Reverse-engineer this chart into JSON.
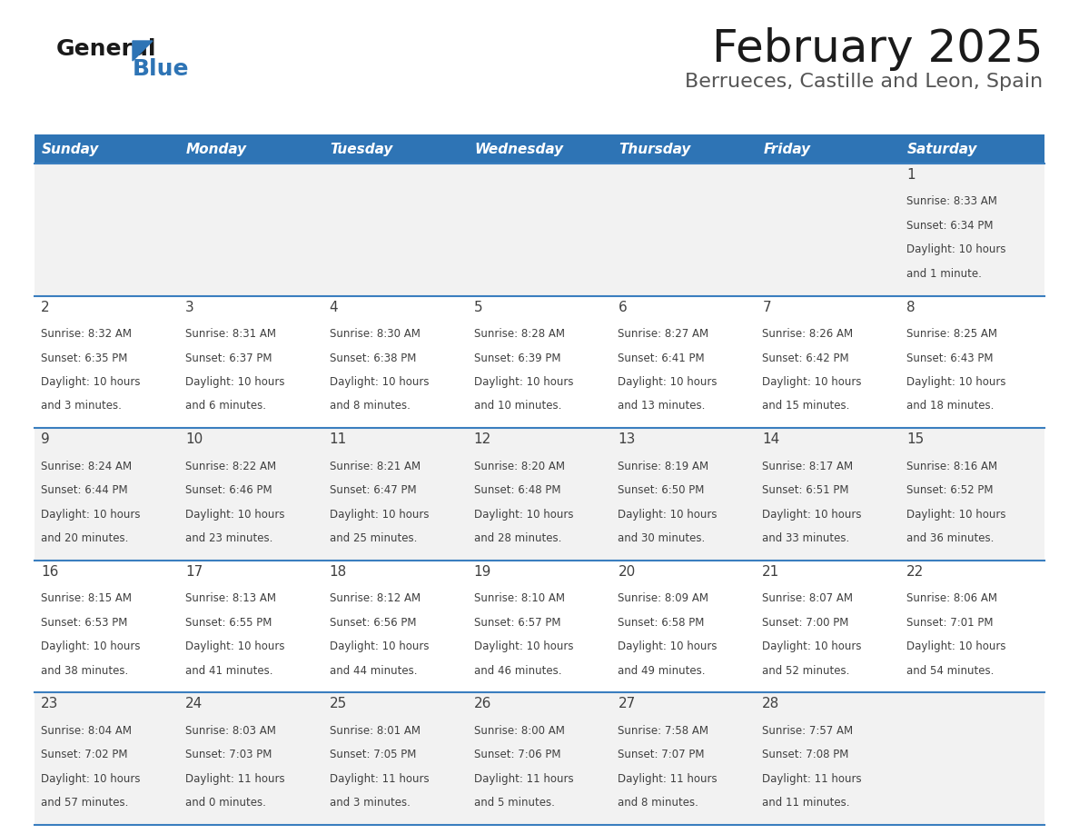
{
  "title": "February 2025",
  "subtitle": "Berrueces, Castille and Leon, Spain",
  "header_color": "#2E74B5",
  "header_text_color": "#FFFFFF",
  "day_names": [
    "Sunday",
    "Monday",
    "Tuesday",
    "Wednesday",
    "Thursday",
    "Friday",
    "Saturday"
  ],
  "background_color": "#FFFFFF",
  "cell_bg_even": "#F2F2F2",
  "cell_bg_odd": "#FFFFFF",
  "row_line_color": "#3A7EBF",
  "text_color": "#404040",
  "days": [
    {
      "day": 1,
      "col": 6,
      "row": 0,
      "sunrise": "8:33 AM",
      "sunset": "6:34 PM",
      "daylight": "10 hours and 1 minute."
    },
    {
      "day": 2,
      "col": 0,
      "row": 1,
      "sunrise": "8:32 AM",
      "sunset": "6:35 PM",
      "daylight": "10 hours and 3 minutes."
    },
    {
      "day": 3,
      "col": 1,
      "row": 1,
      "sunrise": "8:31 AM",
      "sunset": "6:37 PM",
      "daylight": "10 hours and 6 minutes."
    },
    {
      "day": 4,
      "col": 2,
      "row": 1,
      "sunrise": "8:30 AM",
      "sunset": "6:38 PM",
      "daylight": "10 hours and 8 minutes."
    },
    {
      "day": 5,
      "col": 3,
      "row": 1,
      "sunrise": "8:28 AM",
      "sunset": "6:39 PM",
      "daylight": "10 hours and 10 minutes."
    },
    {
      "day": 6,
      "col": 4,
      "row": 1,
      "sunrise": "8:27 AM",
      "sunset": "6:41 PM",
      "daylight": "10 hours and 13 minutes."
    },
    {
      "day": 7,
      "col": 5,
      "row": 1,
      "sunrise": "8:26 AM",
      "sunset": "6:42 PM",
      "daylight": "10 hours and 15 minutes."
    },
    {
      "day": 8,
      "col": 6,
      "row": 1,
      "sunrise": "8:25 AM",
      "sunset": "6:43 PM",
      "daylight": "10 hours and 18 minutes."
    },
    {
      "day": 9,
      "col": 0,
      "row": 2,
      "sunrise": "8:24 AM",
      "sunset": "6:44 PM",
      "daylight": "10 hours and 20 minutes."
    },
    {
      "day": 10,
      "col": 1,
      "row": 2,
      "sunrise": "8:22 AM",
      "sunset": "6:46 PM",
      "daylight": "10 hours and 23 minutes."
    },
    {
      "day": 11,
      "col": 2,
      "row": 2,
      "sunrise": "8:21 AM",
      "sunset": "6:47 PM",
      "daylight": "10 hours and 25 minutes."
    },
    {
      "day": 12,
      "col": 3,
      "row": 2,
      "sunrise": "8:20 AM",
      "sunset": "6:48 PM",
      "daylight": "10 hours and 28 minutes."
    },
    {
      "day": 13,
      "col": 4,
      "row": 2,
      "sunrise": "8:19 AM",
      "sunset": "6:50 PM",
      "daylight": "10 hours and 30 minutes."
    },
    {
      "day": 14,
      "col": 5,
      "row": 2,
      "sunrise": "8:17 AM",
      "sunset": "6:51 PM",
      "daylight": "10 hours and 33 minutes."
    },
    {
      "day": 15,
      "col": 6,
      "row": 2,
      "sunrise": "8:16 AM",
      "sunset": "6:52 PM",
      "daylight": "10 hours and 36 minutes."
    },
    {
      "day": 16,
      "col": 0,
      "row": 3,
      "sunrise": "8:15 AM",
      "sunset": "6:53 PM",
      "daylight": "10 hours and 38 minutes."
    },
    {
      "day": 17,
      "col": 1,
      "row": 3,
      "sunrise": "8:13 AM",
      "sunset": "6:55 PM",
      "daylight": "10 hours and 41 minutes."
    },
    {
      "day": 18,
      "col": 2,
      "row": 3,
      "sunrise": "8:12 AM",
      "sunset": "6:56 PM",
      "daylight": "10 hours and 44 minutes."
    },
    {
      "day": 19,
      "col": 3,
      "row": 3,
      "sunrise": "8:10 AM",
      "sunset": "6:57 PM",
      "daylight": "10 hours and 46 minutes."
    },
    {
      "day": 20,
      "col": 4,
      "row": 3,
      "sunrise": "8:09 AM",
      "sunset": "6:58 PM",
      "daylight": "10 hours and 49 minutes."
    },
    {
      "day": 21,
      "col": 5,
      "row": 3,
      "sunrise": "8:07 AM",
      "sunset": "7:00 PM",
      "daylight": "10 hours and 52 minutes."
    },
    {
      "day": 22,
      "col": 6,
      "row": 3,
      "sunrise": "8:06 AM",
      "sunset": "7:01 PM",
      "daylight": "10 hours and 54 minutes."
    },
    {
      "day": 23,
      "col": 0,
      "row": 4,
      "sunrise": "8:04 AM",
      "sunset": "7:02 PM",
      "daylight": "10 hours and 57 minutes."
    },
    {
      "day": 24,
      "col": 1,
      "row": 4,
      "sunrise": "8:03 AM",
      "sunset": "7:03 PM",
      "daylight": "11 hours and 0 minutes."
    },
    {
      "day": 25,
      "col": 2,
      "row": 4,
      "sunrise": "8:01 AM",
      "sunset": "7:05 PM",
      "daylight": "11 hours and 3 minutes."
    },
    {
      "day": 26,
      "col": 3,
      "row": 4,
      "sunrise": "8:00 AM",
      "sunset": "7:06 PM",
      "daylight": "11 hours and 5 minutes."
    },
    {
      "day": 27,
      "col": 4,
      "row": 4,
      "sunrise": "7:58 AM",
      "sunset": "7:07 PM",
      "daylight": "11 hours and 8 minutes."
    },
    {
      "day": 28,
      "col": 5,
      "row": 4,
      "sunrise": "7:57 AM",
      "sunset": "7:08 PM",
      "daylight": "11 hours and 11 minutes."
    }
  ],
  "num_rows": 5,
  "num_cols": 7,
  "title_fontsize": 36,
  "subtitle_fontsize": 16,
  "header_fontsize": 11,
  "day_num_fontsize": 11,
  "cell_fontsize": 8.5
}
